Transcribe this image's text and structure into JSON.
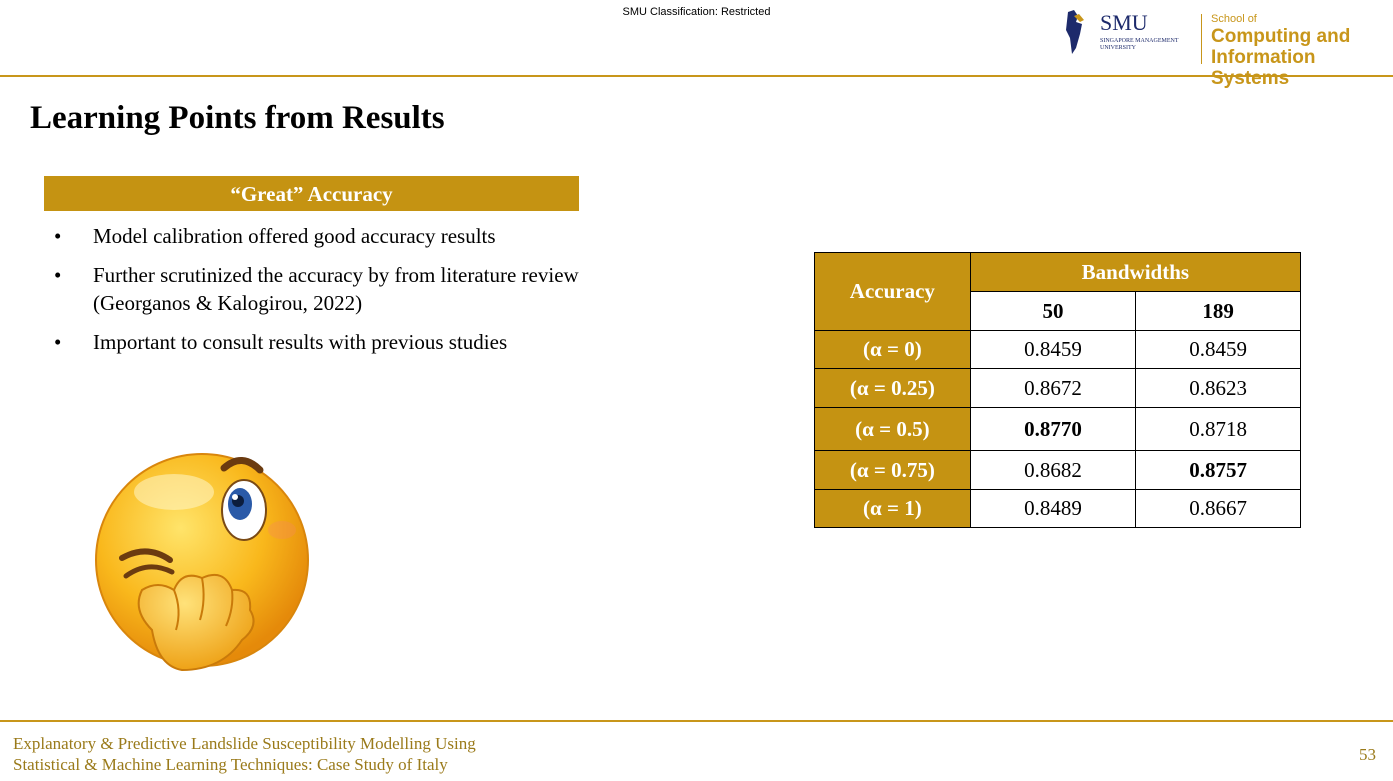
{
  "header": {
    "classification": "SMU Classification: Restricted",
    "smu_logo": {
      "name": "SMU",
      "sub1": "SINGAPORE MANAGEMENT",
      "sub2": "UNIVERSITY"
    },
    "school": {
      "line1": "School of",
      "line2": "Computing and",
      "line3": "Information Systems"
    },
    "accent_color": "#c59312"
  },
  "slide": {
    "title": "Learning Points from Results",
    "section_heading": "“Great” Accuracy",
    "bullets": [
      "Model calibration offered good accuracy results",
      "Further scrutinized the accuracy by from literature review (Georganos & Kalogirou, 2022)",
      "Important to consult results with previous studies"
    ],
    "illustration": "thinking-winking-emoji"
  },
  "table": {
    "row_header": "Accuracy",
    "group_header": "Bandwidths",
    "columns": [
      "50",
      "189"
    ],
    "rows": [
      {
        "label": "(α = 0)",
        "values": [
          "0.8459",
          "0.8459"
        ],
        "bold": [
          false,
          false
        ]
      },
      {
        "label": "(α = 0.25)",
        "values": [
          "0.8672",
          "0.8623"
        ],
        "bold": [
          false,
          false
        ]
      },
      {
        "label": "(α = 0.5)",
        "values": [
          "0.8770",
          "0.8718"
        ],
        "bold": [
          true,
          false
        ]
      },
      {
        "label": "(α = 0.75)",
        "values": [
          "0.8682",
          "0.8757"
        ],
        "bold": [
          false,
          true
        ]
      },
      {
        "label": "(α = 1)",
        "values": [
          "0.8489",
          "0.8667"
        ],
        "bold": [
          false,
          false
        ]
      }
    ]
  },
  "footer": {
    "line1": "Explanatory & Predictive Landslide Susceptibility Modelling Using",
    "line2": "Statistical & Machine Learning Techniques: Case Study of Italy",
    "page_number": "53"
  }
}
